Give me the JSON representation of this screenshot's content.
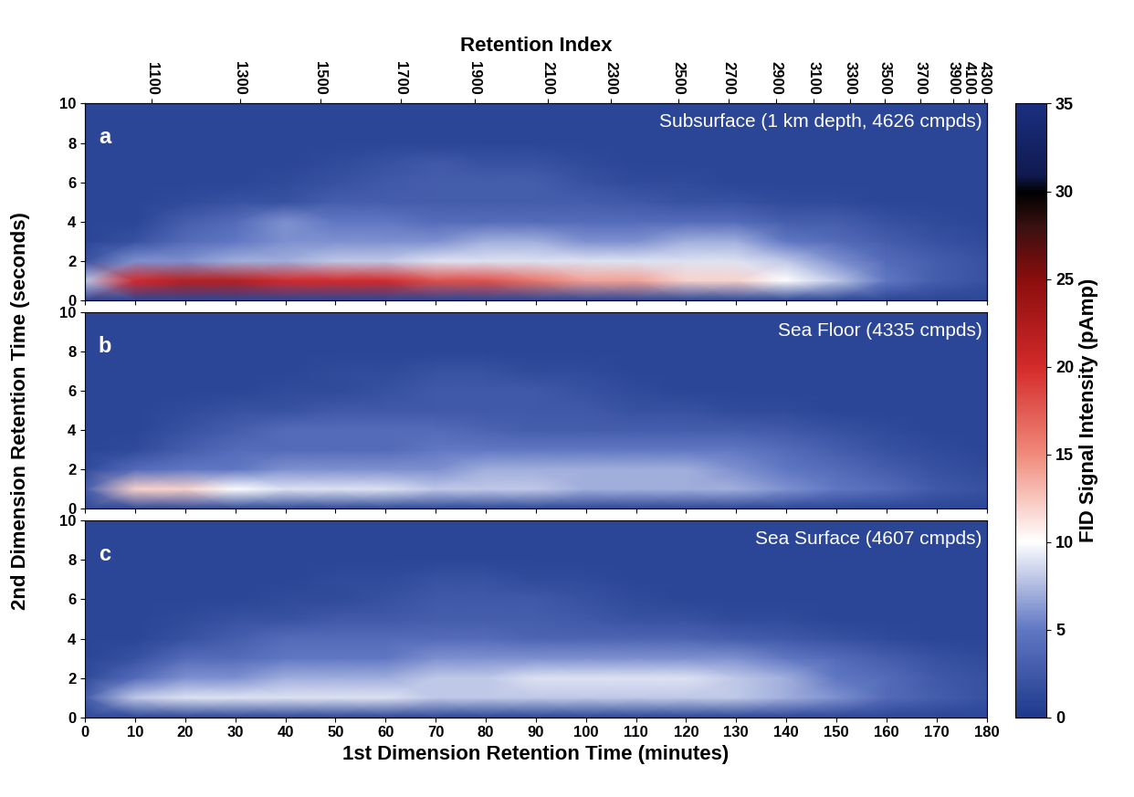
{
  "chart_data": {
    "type": "heatmap",
    "xlabel": "1st Dimension Retention Time (minutes)",
    "ylabel": "2nd Dimension Retention Time (seconds)",
    "top_axis_label": "Retention Index",
    "xlim": [
      0,
      180
    ],
    "xticks": [
      0,
      10,
      20,
      30,
      40,
      50,
      60,
      70,
      80,
      90,
      100,
      110,
      120,
      130,
      140,
      150,
      160,
      170,
      180
    ],
    "ylim": [
      0,
      10
    ],
    "yticks": [
      0,
      2,
      4,
      6,
      8,
      10
    ],
    "top_xticks": [
      {
        "value": 13.3,
        "label": "1100"
      },
      {
        "value": 30.9,
        "label": "1300"
      },
      {
        "value": 47.0,
        "label": "1500"
      },
      {
        "value": 63.0,
        "label": "1700"
      },
      {
        "value": 77.8,
        "label": "1900"
      },
      {
        "value": 92.4,
        "label": "2100"
      },
      {
        "value": 105.0,
        "label": "2300"
      },
      {
        "value": 118.4,
        "label": "2500"
      },
      {
        "value": 128.5,
        "label": "2700"
      },
      {
        "value": 138.0,
        "label": "2900"
      },
      {
        "value": 145.4,
        "label": "3100"
      },
      {
        "value": 152.7,
        "label": "3300"
      },
      {
        "value": 159.6,
        "label": "3500"
      },
      {
        "value": 166.8,
        "label": "3700"
      },
      {
        "value": 173.4,
        "label": "3900"
      },
      {
        "value": 176.5,
        "label": "4100"
      },
      {
        "value": 179.5,
        "label": "4300"
      }
    ],
    "x": [
      0,
      10,
      20,
      30,
      40,
      50,
      60,
      70,
      80,
      90,
      100,
      110,
      120,
      130,
      140,
      150,
      160,
      170,
      180
    ],
    "y": [
      0,
      1,
      2,
      3,
      4,
      5,
      6,
      7,
      8,
      9,
      10
    ],
    "colorbar": {
      "label": "FID Signal Intensity (pAmp)",
      "range": [
        0,
        35
      ],
      "ticks": [
        0,
        5,
        10,
        15,
        20,
        25,
        30,
        35
      ]
    },
    "panels": [
      {
        "label": "a",
        "title": "Subsurface (1 km depth, 4626 cmpds)",
        "values": [
          [
            1,
            1,
            1,
            1,
            1,
            1,
            1,
            1,
            1,
            1,
            1,
            1,
            1,
            1,
            1,
            1,
            1,
            1,
            1
          ],
          [
            8,
            20,
            22,
            22,
            20,
            20,
            20,
            18,
            18,
            16,
            14,
            14,
            12,
            12,
            10,
            8,
            5,
            3,
            2
          ],
          [
            2,
            6,
            6,
            7,
            7,
            8,
            8,
            9,
            9,
            9,
            9,
            9,
            9,
            9,
            8,
            6,
            4,
            3,
            2
          ],
          [
            1,
            2,
            4,
            5,
            6,
            6,
            6,
            6,
            7,
            7,
            6,
            6,
            7,
            7,
            5,
            4,
            3,
            2,
            1.5
          ],
          [
            1,
            1,
            3,
            4,
            6,
            5,
            5,
            4,
            4,
            4,
            4,
            4,
            4,
            4,
            3,
            3,
            2,
            1.5,
            1
          ],
          [
            1,
            1,
            1.5,
            2,
            2,
            3,
            3,
            3,
            3,
            3,
            3,
            2.5,
            2,
            2,
            1.5,
            1.5,
            1,
            1,
            1
          ],
          [
            1,
            1,
            1,
            1,
            1.5,
            2,
            2.5,
            3,
            3,
            3,
            2,
            1.5,
            1.5,
            1,
            1,
            1,
            1,
            1,
            1
          ],
          [
            1,
            1,
            1,
            1,
            1,
            1.5,
            2,
            2.5,
            2,
            2,
            1.5,
            1,
            1,
            1,
            1,
            1,
            1,
            1,
            1
          ],
          [
            1,
            1,
            1,
            1,
            1,
            1,
            1,
            1,
            1,
            1,
            1,
            1,
            1,
            1,
            1,
            1,
            1,
            1,
            1
          ],
          [
            1,
            1,
            1,
            1,
            1,
            1,
            1,
            1,
            1,
            1,
            1,
            1,
            1,
            1,
            1,
            1,
            1,
            1,
            1
          ],
          [
            1,
            1,
            1,
            1,
            1,
            1,
            1,
            1,
            1,
            1,
            1,
            1,
            1,
            1,
            1,
            1,
            1,
            1,
            1
          ]
        ]
      },
      {
        "label": "b",
        "title": "Sea Floor (4335 cmpds)",
        "values": [
          [
            1,
            1,
            1,
            1,
            1,
            1,
            1,
            1,
            1,
            1,
            1,
            1,
            1,
            1,
            1,
            1,
            1,
            1,
            1
          ],
          [
            3,
            12,
            12,
            10,
            9,
            9,
            9,
            8,
            8,
            8,
            7,
            7,
            7,
            7,
            6,
            5,
            4,
            2.5,
            2
          ],
          [
            1.5,
            4,
            5,
            5,
            6,
            6,
            6,
            6,
            7,
            7,
            7,
            7,
            7,
            6,
            5,
            4,
            3,
            2,
            1.5
          ],
          [
            1,
            1.5,
            3,
            4,
            4,
            4,
            4,
            5,
            5,
            5,
            5,
            5,
            5,
            5,
            4,
            3,
            2,
            1.5,
            1
          ],
          [
            1,
            1,
            2,
            3,
            4,
            4,
            4,
            4,
            3.5,
            3,
            3,
            3,
            3,
            3,
            2.5,
            2,
            1.5,
            1,
            1
          ],
          [
            1,
            1,
            1.5,
            2,
            2,
            2.5,
            2.5,
            2.5,
            2.5,
            2.5,
            2.5,
            2,
            2,
            1.5,
            1.5,
            1,
            1,
            1,
            1
          ],
          [
            1,
            1,
            1,
            1,
            1.5,
            1.5,
            2,
            2.5,
            2.5,
            2.5,
            2,
            1.5,
            1,
            1,
            1,
            1,
            1,
            1,
            1
          ],
          [
            1,
            1,
            1,
            1,
            1,
            1.5,
            1.5,
            2,
            2,
            1.5,
            1.5,
            1,
            1,
            1,
            1,
            1,
            1,
            1,
            1
          ],
          [
            1,
            1,
            1,
            1,
            1,
            1,
            1,
            1,
            1,
            1,
            1,
            1,
            1,
            1,
            1,
            1,
            1,
            1,
            1
          ],
          [
            1,
            1,
            1,
            1,
            1,
            1,
            1,
            1,
            1,
            1,
            1,
            1,
            1,
            1,
            1,
            1,
            1,
            1,
            1
          ],
          [
            1,
            1,
            1,
            1,
            1,
            1,
            1,
            1,
            1,
            1,
            1,
            1,
            1,
            1,
            1,
            1,
            1,
            1,
            1
          ]
        ]
      },
      {
        "label": "c",
        "title": "Sea Surface (4607 cmpds)",
        "values": [
          [
            1,
            1,
            1,
            1,
            1,
            1,
            1,
            1,
            1,
            1,
            1,
            1,
            1,
            1,
            1,
            1,
            1,
            1,
            1
          ],
          [
            3,
            8,
            9,
            9,
            9,
            9,
            9,
            8,
            8,
            8,
            8,
            8,
            8,
            8,
            7,
            6,
            4,
            3,
            2
          ],
          [
            1.5,
            4,
            6,
            6,
            7,
            7,
            7,
            8,
            8,
            9,
            9,
            9,
            9,
            8,
            7,
            5,
            4,
            2.5,
            2
          ],
          [
            1,
            2,
            4,
            4,
            5,
            5,
            5,
            6,
            6,
            6,
            6,
            6,
            6,
            6,
            5,
            4,
            3,
            2,
            1.5
          ],
          [
            1,
            1,
            2,
            3,
            4,
            4,
            4,
            4,
            4,
            3.5,
            3.5,
            3.5,
            3.5,
            3,
            2.5,
            2,
            1.5,
            1,
            1
          ],
          [
            1,
            1,
            1.5,
            2,
            2,
            2.5,
            2.5,
            3,
            3,
            3,
            2.5,
            2,
            2,
            1.5,
            1.5,
            1,
            1,
            1,
            1
          ],
          [
            1,
            1,
            1,
            1,
            1.5,
            1.5,
            2,
            2.5,
            2.5,
            2.5,
            2,
            1.5,
            1,
            1,
            1,
            1,
            1,
            1,
            1
          ],
          [
            1,
            1,
            1,
            1,
            1,
            1.5,
            1.5,
            2,
            2,
            1.5,
            1.5,
            1,
            1,
            1,
            1,
            1,
            1,
            1,
            1
          ],
          [
            1,
            1,
            1,
            1,
            1,
            1,
            1,
            1,
            1,
            1,
            1,
            1,
            1,
            1,
            1,
            1,
            1,
            1,
            1
          ],
          [
            1,
            1,
            1,
            1,
            1,
            1,
            1,
            1,
            1,
            1,
            1,
            1,
            1,
            1,
            1,
            1,
            1,
            1,
            1
          ],
          [
            1,
            1,
            1,
            1,
            1,
            1,
            1,
            1,
            1,
            1,
            1,
            1,
            1,
            1,
            1,
            1,
            1,
            1,
            1
          ]
        ]
      }
    ]
  }
}
